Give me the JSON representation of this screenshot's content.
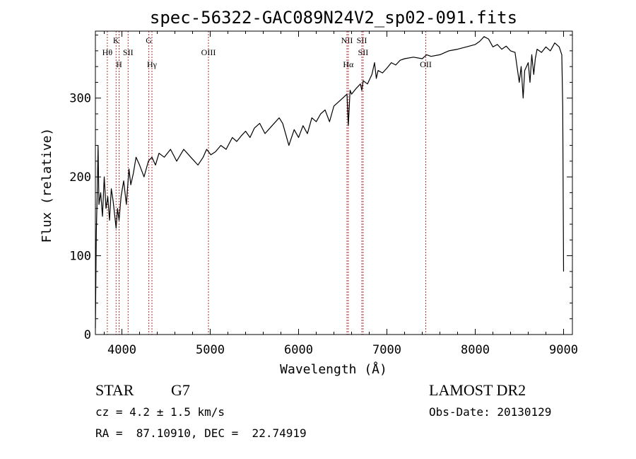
{
  "chart_data": {
    "type": "line",
    "title": "spec-56322-GAC089N24V2_sp02-091.fits",
    "xlabel": "Wavelength (Å)",
    "ylabel": "Flux (relative)",
    "xlim": [
      3700,
      9100
    ],
    "ylim": [
      0,
      385
    ],
    "xticks": [
      4000,
      5000,
      6000,
      7000,
      8000,
      9000
    ],
    "xtick_labels": [
      "4000",
      "5000",
      "6000",
      "7000",
      "8000",
      "9000"
    ],
    "yticks": [
      0,
      100,
      200,
      300
    ],
    "ytick_labels": [
      "0",
      "100",
      "200",
      "300"
    ],
    "grid": false,
    "line_color": "#000000",
    "marker_color": "#b03030",
    "series": [
      {
        "x": [
          3700,
          3710,
          3720,
          3730,
          3740,
          3760,
          3780,
          3800,
          3820,
          3840,
          3860,
          3880,
          3900,
          3920,
          3934,
          3950,
          3968,
          3990,
          4020,
          4050,
          4080,
          4101,
          4130,
          4160,
          4200,
          4250,
          4300,
          4340,
          4380,
          4420,
          4480,
          4550,
          4620,
          4700,
          4780,
          4861,
          4920,
          4959,
          5007,
          5060,
          5120,
          5180,
          5250,
          5300,
          5350,
          5400,
          5450,
          5500,
          5560,
          5620,
          5700,
          5780,
          5820,
          5890,
          5950,
          6000,
          6050,
          6100,
          6150,
          6200,
          6250,
          6300,
          6350,
          6400,
          6450,
          6500,
          6548,
          6563,
          6583,
          6600,
          6650,
          6700,
          6716,
          6731,
          6780,
          6830,
          6860,
          6880,
          6900,
          6950,
          7000,
          7050,
          7100,
          7150,
          7200,
          7300,
          7400,
          7450,
          7500,
          7600,
          7700,
          7800,
          7900,
          8000,
          8050,
          8100,
          8150,
          8200,
          8250,
          8300,
          8350,
          8400,
          8450,
          8498,
          8520,
          8542,
          8560,
          8600,
          8620,
          8640,
          8662,
          8680,
          8700,
          8750,
          8800,
          8850,
          8900,
          8950,
          8980,
          8990,
          9000
        ],
        "y": [
          8,
          130,
          175,
          240,
          165,
          180,
          150,
          200,
          160,
          175,
          145,
          185,
          170,
          150,
          135,
          160,
          145,
          175,
          195,
          165,
          210,
          190,
          205,
          225,
          215,
          200,
          220,
          225,
          215,
          230,
          225,
          235,
          220,
          235,
          225,
          215,
          225,
          235,
          228,
          232,
          240,
          235,
          250,
          245,
          252,
          258,
          250,
          262,
          268,
          255,
          265,
          275,
          268,
          240,
          260,
          250,
          265,
          255,
          275,
          270,
          280,
          285,
          270,
          290,
          295,
          300,
          305,
          265,
          310,
          305,
          312,
          318,
          310,
          322,
          318,
          330,
          345,
          325,
          335,
          332,
          338,
          345,
          342,
          348,
          350,
          352,
          350,
          355,
          353,
          355,
          360,
          362,
          365,
          368,
          372,
          378,
          375,
          365,
          368,
          362,
          366,
          360,
          358,
          320,
          340,
          300,
          335,
          345,
          320,
          355,
          330,
          350,
          362,
          358,
          365,
          360,
          370,
          365,
          355,
          290,
          80
        ]
      }
    ],
    "line_markers": [
      {
        "x": 3835,
        "label": "Hθ",
        "row": 2
      },
      {
        "x": 3934,
        "label": "K",
        "row": 1
      },
      {
        "x": 3968,
        "label": "H",
        "row": 3
      },
      {
        "x": 4070,
        "label": "SII",
        "row": 2
      },
      {
        "x": 4305,
        "label": "G",
        "row": 1
      },
      {
        "x": 4340,
        "label": "Hγ",
        "row": 3
      },
      {
        "x": 4980,
        "label": "OIII",
        "row": 2
      },
      {
        "x": 6548,
        "label": "NII",
        "row": 1
      },
      {
        "x": 6563,
        "label": "Hα",
        "row": 3
      },
      {
        "x": 6716,
        "label": "SII",
        "row": 1
      },
      {
        "x": 6731,
        "label": "SII",
        "row": 2
      },
      {
        "x": 7440,
        "label": "OII",
        "row": 3
      }
    ]
  },
  "info": {
    "object_class": "STAR",
    "subclass": "G7",
    "survey": "LAMOST DR2",
    "cz": "cz = 4.2 ± 1.5 km/s",
    "obs_date": "Obs-Date: 20130129",
    "coords": "RA =  87.10910, DEC =  22.74919"
  }
}
